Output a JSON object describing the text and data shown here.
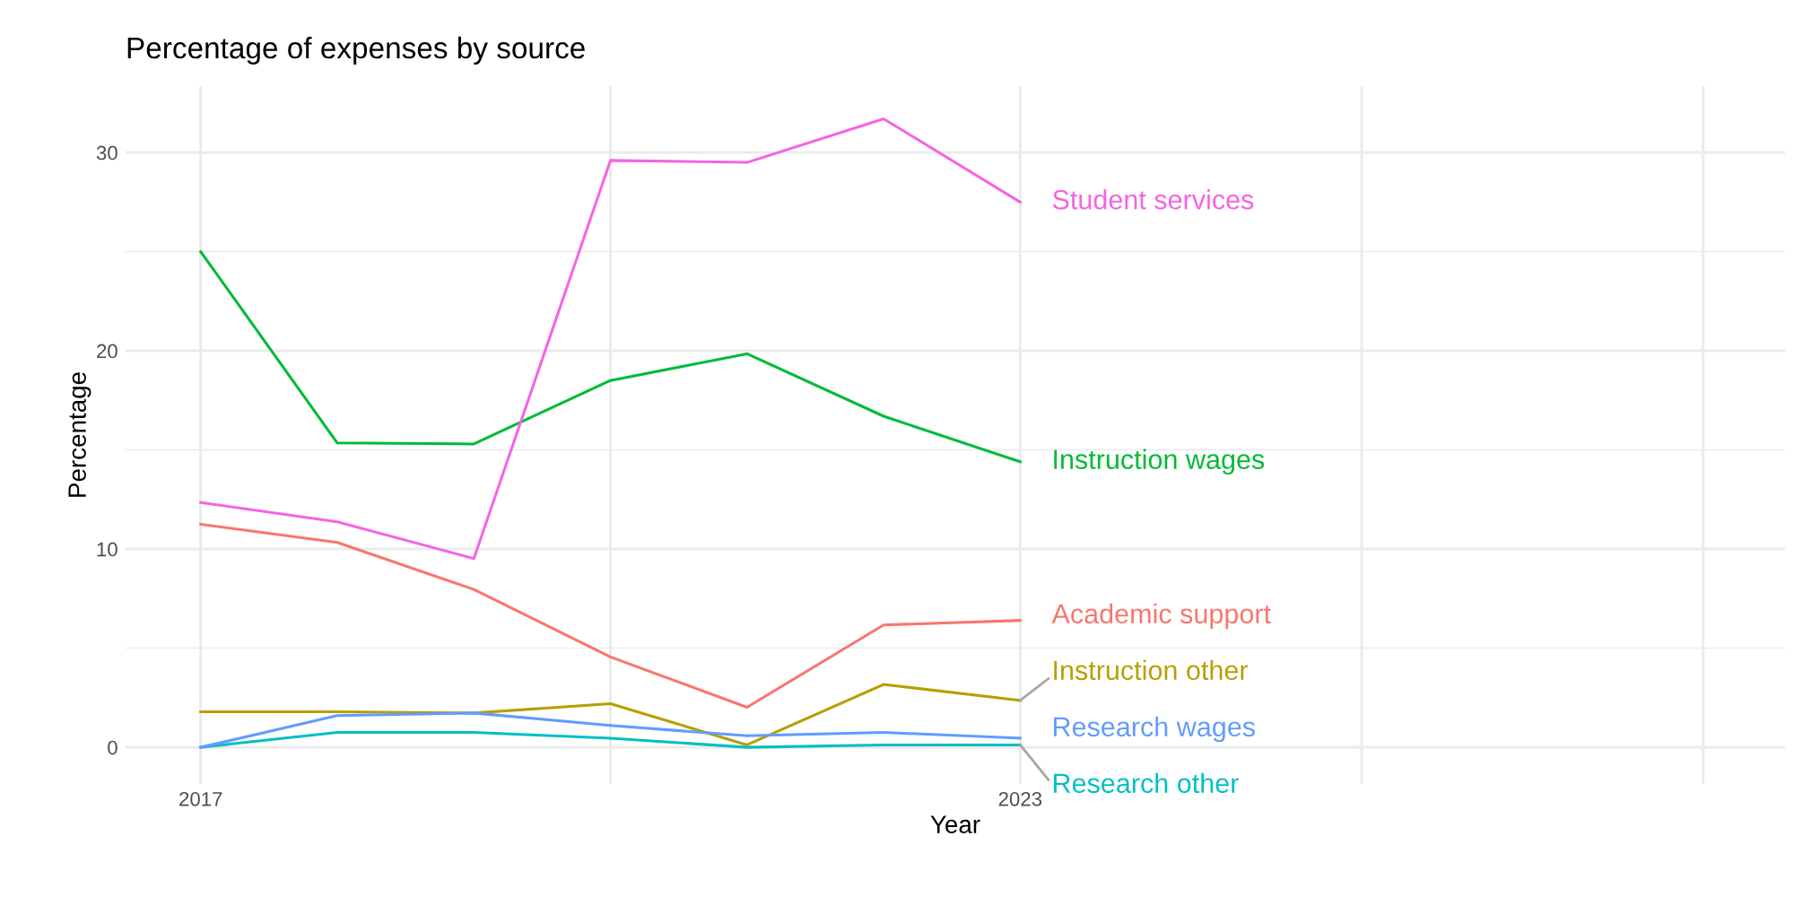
{
  "chart_data": {
    "type": "line",
    "title": "Percentage of expenses by source",
    "xlabel": "Year",
    "ylabel": "Percentage",
    "x": [
      2017,
      2018,
      2019,
      2020,
      2021,
      2022,
      2023
    ],
    "series": [
      {
        "name": "Academic support",
        "color": "#F8766D",
        "values": [
          11.25,
          10.33,
          7.96,
          4.56,
          2.02,
          6.17,
          6.4
        ]
      },
      {
        "name": "Instruction other",
        "color": "#B79F00",
        "values": [
          1.79,
          1.79,
          1.73,
          2.2,
          0.12,
          3.17,
          2.37
        ]
      },
      {
        "name": "Instruction wages",
        "color": "#00BA38",
        "values": [
          25.0,
          15.35,
          15.3,
          18.5,
          19.85,
          16.7,
          14.4
        ]
      },
      {
        "name": "Research other",
        "color": "#00BFC4",
        "values": [
          0,
          0.75,
          0.75,
          0.46,
          0,
          0.12,
          0.12
        ]
      },
      {
        "name": "Research wages",
        "color": "#619CFF",
        "values": [
          0,
          1.6,
          1.73,
          1.1,
          0.58,
          0.75,
          0.46
        ]
      },
      {
        "name": "Student services",
        "color": "#F564E3",
        "values": [
          12.35,
          11.37,
          9.52,
          29.6,
          29.5,
          31.7,
          27.5
        ]
      }
    ],
    "xlim": [
      2016.45,
      2028.6
    ],
    "xticks": [
      2017,
      {
        "value": 2020,
        "label": null
      },
      2023,
      {
        "value": 2025.5,
        "label": null
      },
      {
        "value": 2028,
        "label": null
      }
    ],
    "ylim": [
      -1.85,
      33.35
    ],
    "yticks": [
      0,
      10,
      20,
      30
    ],
    "grid": true,
    "legend": false,
    "marker": "none",
    "line_style": "solid"
  }
}
